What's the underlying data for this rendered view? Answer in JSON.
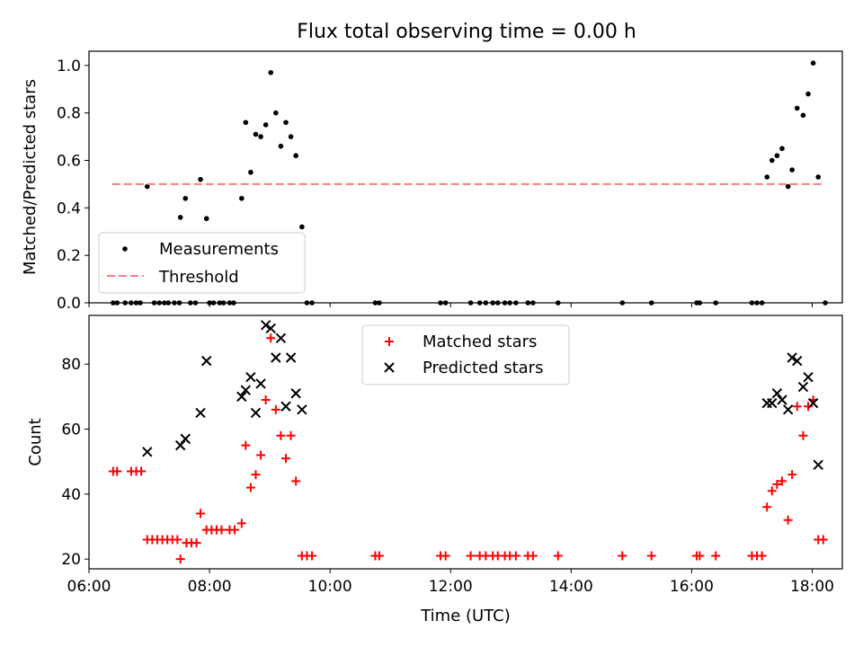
{
  "title": "Flux total observing time = 0.00 h",
  "chart_data": [
    {
      "type": "scatter",
      "title": "Flux total observing time = 0.00 h",
      "xlabel": "",
      "ylabel": "Matched/Predicted stars",
      "xlim": [
        "06:00",
        "18:30"
      ],
      "ylim": [
        0,
        1.06
      ],
      "x_ticks": [
        "06:00",
        "08:00",
        "10:00",
        "12:00",
        "14:00",
        "16:00",
        "18:00"
      ],
      "y_ticks": [
        "0.0",
        "0.2",
        "0.4",
        "0.6",
        "0.8",
        "1.0"
      ],
      "legend_position": "lower-left",
      "series": [
        {
          "name": "Measurements",
          "kind": "scatter",
          "color": "#000000",
          "points": [
            [
              "06:58",
              0.49
            ],
            [
              "07:31",
              0.36
            ],
            [
              "07:36",
              0.44
            ],
            [
              "07:51",
              0.52
            ],
            [
              "07:57",
              0.355
            ],
            [
              "08:32",
              0.44
            ],
            [
              "08:36",
              0.76
            ],
            [
              "08:41",
              0.55
            ],
            [
              "08:46",
              0.71
            ],
            [
              "08:51",
              0.7
            ],
            [
              "08:56",
              0.75
            ],
            [
              "09:01",
              0.97
            ],
            [
              "09:06",
              0.8
            ],
            [
              "09:11",
              0.66
            ],
            [
              "09:16",
              0.76
            ],
            [
              "09:21",
              0.7
            ],
            [
              "09:26",
              0.62
            ],
            [
              "09:32",
              0.32
            ],
            [
              "17:15",
              0.53
            ],
            [
              "17:20",
              0.6
            ],
            [
              "17:25",
              0.62
            ],
            [
              "17:30",
              0.65
            ],
            [
              "17:36",
              0.49
            ],
            [
              "17:40",
              0.56
            ],
            [
              "17:45",
              0.82
            ],
            [
              "17:51",
              0.79
            ],
            [
              "17:56",
              0.88
            ],
            [
              "18:01",
              1.01
            ],
            [
              "18:06",
              0.53
            ],
            [
              "06:24",
              0
            ],
            [
              "06:28",
              0
            ],
            [
              "06:36",
              0
            ],
            [
              "06:42",
              0
            ],
            [
              "06:47",
              0
            ],
            [
              "06:51",
              0
            ],
            [
              "07:05",
              0
            ],
            [
              "07:10",
              0
            ],
            [
              "07:15",
              0
            ],
            [
              "07:19",
              0
            ],
            [
              "07:25",
              0
            ],
            [
              "07:30",
              0
            ],
            [
              "07:41",
              0
            ],
            [
              "07:46",
              0
            ],
            [
              "08:00",
              0
            ],
            [
              "08:04",
              0
            ],
            [
              "08:10",
              0
            ],
            [
              "08:14",
              0
            ],
            [
              "08:20",
              0
            ],
            [
              "08:24",
              0
            ],
            [
              "09:37",
              0
            ],
            [
              "09:42",
              0
            ],
            [
              "10:45",
              0
            ],
            [
              "10:49",
              0
            ],
            [
              "11:50",
              0
            ],
            [
              "11:55",
              0
            ],
            [
              "12:20",
              0
            ],
            [
              "12:29",
              0
            ],
            [
              "12:35",
              0
            ],
            [
              "12:42",
              0
            ],
            [
              "12:47",
              0
            ],
            [
              "12:54",
              0
            ],
            [
              "12:59",
              0
            ],
            [
              "13:05",
              0
            ],
            [
              "13:17",
              0
            ],
            [
              "13:22",
              0
            ],
            [
              "13:47",
              0
            ],
            [
              "14:51",
              0
            ],
            [
              "15:20",
              0
            ],
            [
              "16:05",
              0
            ],
            [
              "16:08",
              0
            ],
            [
              "16:24",
              0
            ],
            [
              "17:00",
              0
            ],
            [
              "17:05",
              0
            ],
            [
              "17:10",
              0
            ],
            [
              "18:13",
              0
            ]
          ]
        },
        {
          "name": "Threshold",
          "kind": "dashed-line",
          "color": "#f47f7f",
          "points": [
            [
              "06:23",
              0.5
            ],
            [
              "18:10",
              0.5
            ]
          ]
        }
      ]
    },
    {
      "type": "scatter",
      "title": "",
      "xlabel": "Time (UTC)",
      "ylabel": "Count",
      "xlim": [
        "06:00",
        "18:30"
      ],
      "ylim": [
        17,
        95
      ],
      "x_ticks": [
        "06:00",
        "08:00",
        "10:00",
        "12:00",
        "14:00",
        "16:00",
        "18:00"
      ],
      "y_ticks": [
        "20",
        "40",
        "60",
        "80"
      ],
      "legend_position": "upper-center",
      "series": [
        {
          "name": "Matched stars",
          "marker": "+",
          "color": "#ff0000",
          "points": [
            [
              "06:24",
              47
            ],
            [
              "06:28",
              47
            ],
            [
              "06:42",
              47
            ],
            [
              "06:47",
              47
            ],
            [
              "06:52",
              47
            ],
            [
              "06:58",
              26
            ],
            [
              "07:03",
              26
            ],
            [
              "07:08",
              26
            ],
            [
              "07:13",
              26
            ],
            [
              "07:18",
              26
            ],
            [
              "07:23",
              26
            ],
            [
              "07:28",
              26
            ],
            [
              "07:31",
              20
            ],
            [
              "07:37",
              25
            ],
            [
              "07:42",
              25
            ],
            [
              "07:47",
              25
            ],
            [
              "07:51",
              34
            ],
            [
              "07:57",
              29
            ],
            [
              "08:02",
              29
            ],
            [
              "08:07",
              29
            ],
            [
              "08:12",
              29
            ],
            [
              "08:20",
              29
            ],
            [
              "08:25",
              29
            ],
            [
              "08:32",
              31
            ],
            [
              "08:36",
              55
            ],
            [
              "08:41",
              42
            ],
            [
              "08:46",
              46
            ],
            [
              "08:51",
              52
            ],
            [
              "08:56",
              69
            ],
            [
              "09:01",
              88
            ],
            [
              "09:06",
              66
            ],
            [
              "09:11",
              58
            ],
            [
              "09:16",
              51
            ],
            [
              "09:21",
              58
            ],
            [
              "09:26",
              44
            ],
            [
              "09:32",
              21
            ],
            [
              "09:37",
              21
            ],
            [
              "09:42",
              21
            ],
            [
              "10:45",
              21
            ],
            [
              "10:49",
              21
            ],
            [
              "11:50",
              21
            ],
            [
              "11:55",
              21
            ],
            [
              "12:20",
              21
            ],
            [
              "12:29",
              21
            ],
            [
              "12:35",
              21
            ],
            [
              "12:42",
              21
            ],
            [
              "12:47",
              21
            ],
            [
              "12:54",
              21
            ],
            [
              "12:59",
              21
            ],
            [
              "13:05",
              21
            ],
            [
              "13:17",
              21
            ],
            [
              "13:22",
              21
            ],
            [
              "13:47",
              21
            ],
            [
              "14:51",
              21
            ],
            [
              "15:20",
              21
            ],
            [
              "16:05",
              21
            ],
            [
              "16:08",
              21
            ],
            [
              "16:24",
              21
            ],
            [
              "17:00",
              21
            ],
            [
              "17:05",
              21
            ],
            [
              "17:10",
              21
            ],
            [
              "17:15",
              36
            ],
            [
              "17:20",
              41
            ],
            [
              "17:25",
              43
            ],
            [
              "17:30",
              44
            ],
            [
              "17:36",
              32
            ],
            [
              "17:40",
              46
            ],
            [
              "17:45",
              67
            ],
            [
              "17:51",
              58
            ],
            [
              "17:56",
              67
            ],
            [
              "18:01",
              69
            ],
            [
              "18:06",
              26
            ],
            [
              "18:11",
              26
            ]
          ]
        },
        {
          "name": "Predicted stars",
          "marker": "x",
          "color": "#000000",
          "points": [
            [
              "06:58",
              53
            ],
            [
              "07:31",
              55
            ],
            [
              "07:36",
              57
            ],
            [
              "07:51",
              65
            ],
            [
              "07:57",
              81
            ],
            [
              "08:32",
              70
            ],
            [
              "08:36",
              72
            ],
            [
              "08:41",
              76
            ],
            [
              "08:46",
              65
            ],
            [
              "08:51",
              74
            ],
            [
              "08:56",
              92
            ],
            [
              "09:01",
              91
            ],
            [
              "09:06",
              82
            ],
            [
              "09:11",
              88
            ],
            [
              "09:16",
              67
            ],
            [
              "09:21",
              82
            ],
            [
              "09:26",
              71
            ],
            [
              "09:32",
              66
            ],
            [
              "17:15",
              68
            ],
            [
              "17:20",
              68
            ],
            [
              "17:25",
              71
            ],
            [
              "17:30",
              69
            ],
            [
              "17:36",
              66
            ],
            [
              "17:40",
              82
            ],
            [
              "17:45",
              81
            ],
            [
              "17:51",
              73
            ],
            [
              "17:56",
              76
            ],
            [
              "18:01",
              68
            ],
            [
              "18:06",
              49
            ]
          ]
        }
      ]
    }
  ]
}
